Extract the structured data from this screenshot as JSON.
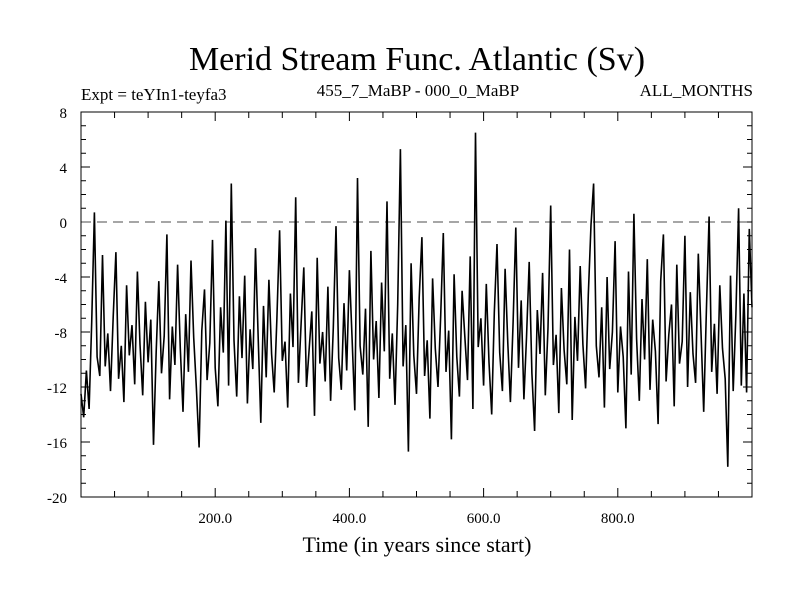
{
  "chart_data": {
    "type": "line",
    "title": "Merid Stream Func. Atlantic (Sv)",
    "subtitle_left": "Expt = teYIn1-teyfa3",
    "subtitle_center": "455_7_MaBP - 000_0_MaBP",
    "subtitle_right": "ALL_MONTHS",
    "xlabel": "Time (in years since start)",
    "ylabel": "",
    "xlim": [
      0,
      1000
    ],
    "ylim": [
      -20,
      8
    ],
    "xticks": [
      200,
      400,
      600,
      800
    ],
    "xtick_labels": [
      "200.0",
      "400.0",
      "600.0",
      "800.0"
    ],
    "x_minor_step": 50,
    "yticks": [
      8,
      4,
      0,
      -4,
      -8,
      -12,
      -16,
      -20
    ],
    "ytick_labels": [
      "8",
      "4",
      "0",
      "-4",
      "-8",
      "-12",
      "-16",
      "-20"
    ],
    "y_minor_step": 1,
    "reference_line": {
      "y": 0,
      "style": "dashed",
      "color": "#888888"
    },
    "grid": false,
    "series": [
      {
        "name": "Merid Stream Func. Atlantic",
        "color": "#000000",
        "x_start": 0,
        "x_step": 4,
        "values": [
          -12.5,
          -14.2,
          -10.8,
          -13.6,
          -7.3,
          0.7,
          -9.8,
          -11.2,
          -2.4,
          -10.5,
          -8.1,
          -12.3,
          -6.9,
          -2.2,
          -11.4,
          -9.0,
          -13.1,
          -4.6,
          -9.7,
          -7.5,
          -11.8,
          -3.6,
          -8.9,
          -12.6,
          -5.8,
          -10.2,
          -7.1,
          -16.2,
          -9.4,
          -4.3,
          -11.0,
          -8.3,
          -0.9,
          -12.9,
          -7.6,
          -10.4,
          -3.1,
          -9.2,
          -13.8,
          -6.7,
          -10.9,
          -2.8,
          -8.4,
          -12.1,
          -16.4,
          -7.9,
          -4.9,
          -11.5,
          -8.8,
          -1.3,
          -10.6,
          -13.4,
          -6.2,
          -9.5,
          0.1,
          -11.9,
          2.8,
          -8.6,
          -12.7,
          -5.4,
          -9.9,
          -3.9,
          -13.2,
          -7.8,
          -10.7,
          -1.9,
          -8.2,
          -14.6,
          -6.1,
          -11.3,
          -4.2,
          -9.6,
          -12.4,
          -7.0,
          -0.6,
          -10.1,
          -8.7,
          -13.5,
          -5.2,
          -9.1,
          1.8,
          -11.7,
          -7.4,
          -3.3,
          -12.0,
          -9.3,
          -6.5,
          -14.1,
          -2.6,
          -10.3,
          -8.0,
          -11.6,
          -4.7,
          -13.0,
          -7.7,
          -0.3,
          -9.9,
          -12.2,
          -5.9,
          -10.8,
          -3.5,
          -8.5,
          -13.7,
          3.2,
          -9.0,
          -11.1,
          -6.3,
          -14.9,
          -2.1,
          -10.0,
          -7.2,
          -12.8,
          -4.4,
          -9.4,
          1.5,
          -11.4,
          -8.1,
          -13.3,
          -6.0,
          5.3,
          -10.5,
          -7.5,
          -16.7,
          -3.0,
          -9.7,
          -12.5,
          -5.5,
          -1.1,
          -11.2,
          -8.6,
          -14.3,
          -4.1,
          -9.2,
          -12.0,
          -6.8,
          -0.8,
          -10.9,
          -7.9,
          -15.8,
          -3.8,
          -9.8,
          -12.7,
          -5.0,
          -8.3,
          -11.5,
          -2.5,
          -13.6,
          6.5,
          -9.1,
          -7.0,
          -11.9,
          -4.5,
          -10.2,
          -14.0,
          -6.6,
          -1.6,
          -9.5,
          -12.3,
          -3.4,
          -8.8,
          -13.1,
          -7.3,
          -0.4,
          -10.6,
          -5.7,
          -12.9,
          -8.4,
          -2.9,
          -11.0,
          -15.2,
          -6.4,
          -9.6,
          -3.7,
          -12.6,
          -7.7,
          1.2,
          -10.4,
          -8.2,
          -13.9,
          -4.8,
          -9.3,
          -11.8,
          -2.0,
          -14.4,
          -6.9,
          -10.1,
          -3.2,
          -8.9,
          -12.1,
          -5.3,
          -0.2,
          2.8,
          -9.0,
          -11.3,
          -6.2,
          -13.5,
          -4.0,
          -10.7,
          -8.0,
          -1.4,
          -12.4,
          -7.6,
          -9.8,
          -15.0,
          -3.6,
          -11.1,
          0.6,
          -8.5,
          -13.0,
          -5.6,
          -10.0,
          -2.7,
          -12.2,
          -7.1,
          -9.4,
          -14.7,
          -4.3,
          -0.9,
          -11.6,
          -8.2,
          -6.0,
          -13.4,
          -3.1,
          -10.3,
          -8.7,
          -1.0,
          -12.0,
          -5.1,
          -9.6,
          -11.7,
          -2.3,
          -8.0,
          -13.8,
          -6.4,
          0.4,
          -10.9,
          -7.4,
          -12.5,
          -4.6,
          -9.2,
          -11.4,
          -17.8,
          -3.9,
          -12.3,
          -6.7,
          1.0,
          -11.9,
          -5.2,
          -12.4,
          -0.5,
          -6.2
        ]
      }
    ]
  }
}
